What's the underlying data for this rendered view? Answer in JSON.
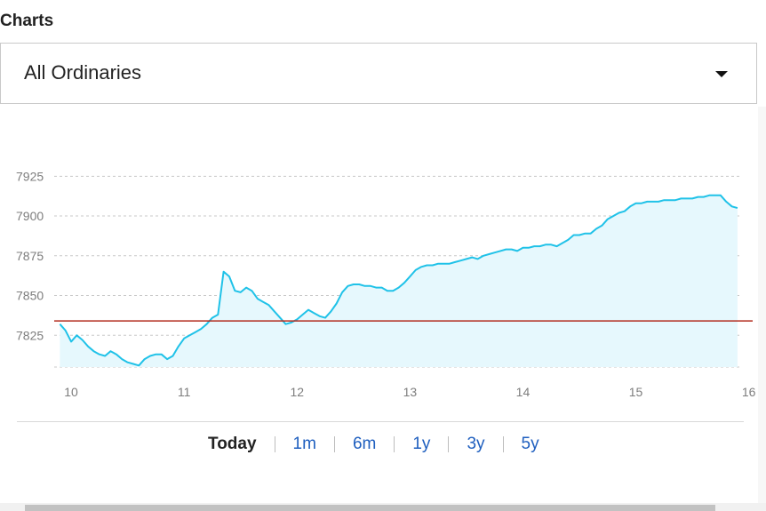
{
  "section": {
    "title": "Charts"
  },
  "index_selector": {
    "selected": "All Ordinaries",
    "icon": "caret-down-icon"
  },
  "range_tabs": [
    {
      "label": "Today",
      "active": true
    },
    {
      "label": "1m",
      "active": false
    },
    {
      "label": "6m",
      "active": false
    },
    {
      "label": "1y",
      "active": false
    },
    {
      "label": "3y",
      "active": false
    },
    {
      "label": "5y",
      "active": false
    }
  ],
  "chart_data": {
    "type": "area",
    "title": "",
    "xlabel": "",
    "ylabel": "",
    "xlim": [
      9.85,
      16.05
    ],
    "ylim": [
      7800,
      7933
    ],
    "x_ticks": [
      10,
      11,
      12,
      13,
      14,
      15,
      16
    ],
    "y_ticks": [
      7825,
      7850,
      7875,
      7900,
      7925
    ],
    "grid": true,
    "reference_line": {
      "value": 7834,
      "color": "#b22b1e"
    },
    "colors": {
      "line": "#20c2e8",
      "fill": "#e6f8fd",
      "grid": "#c8c8c8"
    },
    "series": [
      {
        "x": [
          9.9,
          9.95,
          10.0,
          10.05,
          10.1,
          10.15,
          10.2,
          10.25,
          10.3,
          10.35,
          10.4,
          10.45,
          10.5,
          10.55,
          10.6,
          10.65,
          10.7,
          10.75,
          10.8,
          10.85,
          10.9,
          10.95,
          11.0,
          11.05,
          11.1,
          11.15,
          11.2,
          11.25,
          11.3,
          11.35,
          11.4,
          11.45,
          11.5,
          11.55,
          11.6,
          11.65,
          11.7,
          11.75,
          11.8,
          11.85,
          11.9,
          11.95,
          12.0,
          12.05,
          12.1,
          12.15,
          12.2,
          12.25,
          12.3,
          12.35,
          12.4,
          12.45,
          12.5,
          12.55,
          12.6,
          12.65,
          12.7,
          12.75,
          12.8,
          12.85,
          12.9,
          12.95,
          13.0,
          13.05,
          13.1,
          13.15,
          13.2,
          13.25,
          13.3,
          13.35,
          13.4,
          13.45,
          13.5,
          13.55,
          13.6,
          13.65,
          13.7,
          13.75,
          13.8,
          13.85,
          13.9,
          13.95,
          14.0,
          14.05,
          14.1,
          14.15,
          14.2,
          14.25,
          14.3,
          14.35,
          14.4,
          14.45,
          14.5,
          14.55,
          14.6,
          14.65,
          14.7,
          14.75,
          14.8,
          14.85,
          14.9,
          14.95,
          15.0,
          15.05,
          15.1,
          15.15,
          15.2,
          15.25,
          15.3,
          15.35,
          15.4,
          15.45,
          15.5,
          15.55,
          15.6,
          15.65,
          15.7,
          15.75,
          15.8,
          15.85,
          15.9
        ],
        "y": [
          7832,
          7828,
          7821,
          7825,
          7822,
          7818,
          7815,
          7813,
          7812,
          7815,
          7813,
          7810,
          7808,
          7807,
          7806,
          7810,
          7812,
          7813,
          7813,
          7810,
          7812,
          7818,
          7823,
          7825,
          7827,
          7829,
          7832,
          7836,
          7838,
          7865,
          7862,
          7853,
          7852,
          7855,
          7853,
          7848,
          7846,
          7844,
          7840,
          7836,
          7832,
          7833,
          7835,
          7838,
          7841,
          7839,
          7837,
          7836,
          7840,
          7845,
          7852,
          7856,
          7857,
          7857,
          7856,
          7856,
          7855,
          7855,
          7853,
          7853,
          7855,
          7858,
          7862,
          7866,
          7868,
          7869,
          7869,
          7870,
          7870,
          7870,
          7871,
          7872,
          7873,
          7874,
          7873,
          7875,
          7876,
          7877,
          7878,
          7879,
          7879,
          7878,
          7880,
          7880,
          7881,
          7881,
          7882,
          7882,
          7881,
          7883,
          7885,
          7888,
          7888,
          7889,
          7889,
          7892,
          7894,
          7898,
          7900,
          7902,
          7903,
          7906,
          7908,
          7908,
          7909,
          7909,
          7909,
          7910,
          7910,
          7910,
          7911,
          7911,
          7911,
          7912,
          7912,
          7913,
          7913,
          7913,
          7909,
          7906,
          7905
        ]
      }
    ]
  }
}
